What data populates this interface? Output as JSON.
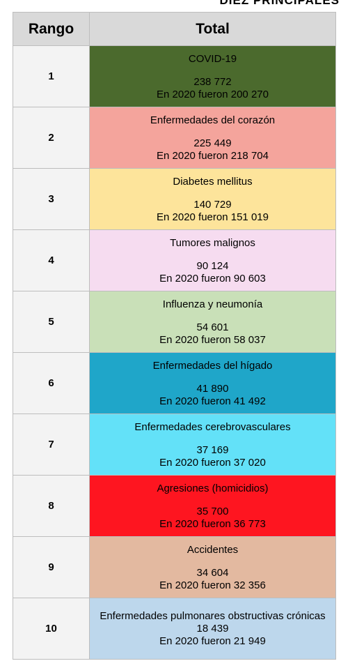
{
  "caption": "DIEZ PRINCIPALES",
  "table": {
    "header": [
      "Rango",
      "Total"
    ],
    "rows": [
      {
        "rank": "1",
        "cause": "COVID-19",
        "total": "238 772",
        "previous": "En 2020 fueron 200 270",
        "color": "#4b6a2d"
      },
      {
        "rank": "2",
        "cause": "Enfermedades del corazón",
        "total": "225 449",
        "previous": "En 2020 fueron 218 704",
        "color": "#f4a49c"
      },
      {
        "rank": "3",
        "cause": "Diabetes mellitus",
        "total": "140 729",
        "previous": "En 2020 fueron 151 019",
        "color": "#fde49b"
      },
      {
        "rank": "4",
        "cause": "Tumores malignos",
        "total": "90 124",
        "previous": "En 2020 fueron 90 603",
        "color": "#f6dcf0"
      },
      {
        "rank": "5",
        "cause": "Influenza y neumonía",
        "total": "54 601",
        "previous": "En 2020 fueron 58 037",
        "color": "#c9e0b8"
      },
      {
        "rank": "6",
        "cause": "Enfermedades del hígado",
        "total": "41 890",
        "previous": "En 2020 fueron 41 492",
        "color": "#1fa6c9"
      },
      {
        "rank": "7",
        "cause": "Enfermedades cerebrovasculares",
        "total": "37 169",
        "previous": "En 2020 fueron 37 020",
        "color": "#63e1f8"
      },
      {
        "rank": "8",
        "cause": "Agresiones (homicidios)",
        "total": "35 700",
        "previous": "En 2020 fueron 36 773",
        "color": "#fe1520"
      },
      {
        "rank": "9",
        "cause": "Accidentes",
        "total": "34 604",
        "previous": "En 2020 fueron 32 356",
        "color": "#e3b9a0"
      },
      {
        "rank": "10",
        "cause": "Enfermedades pulmonares obstructivas crónicas",
        "total": "18 439",
        "previous": "En 2020 fueron 21 949",
        "color": "#bdd7ec"
      }
    ]
  }
}
